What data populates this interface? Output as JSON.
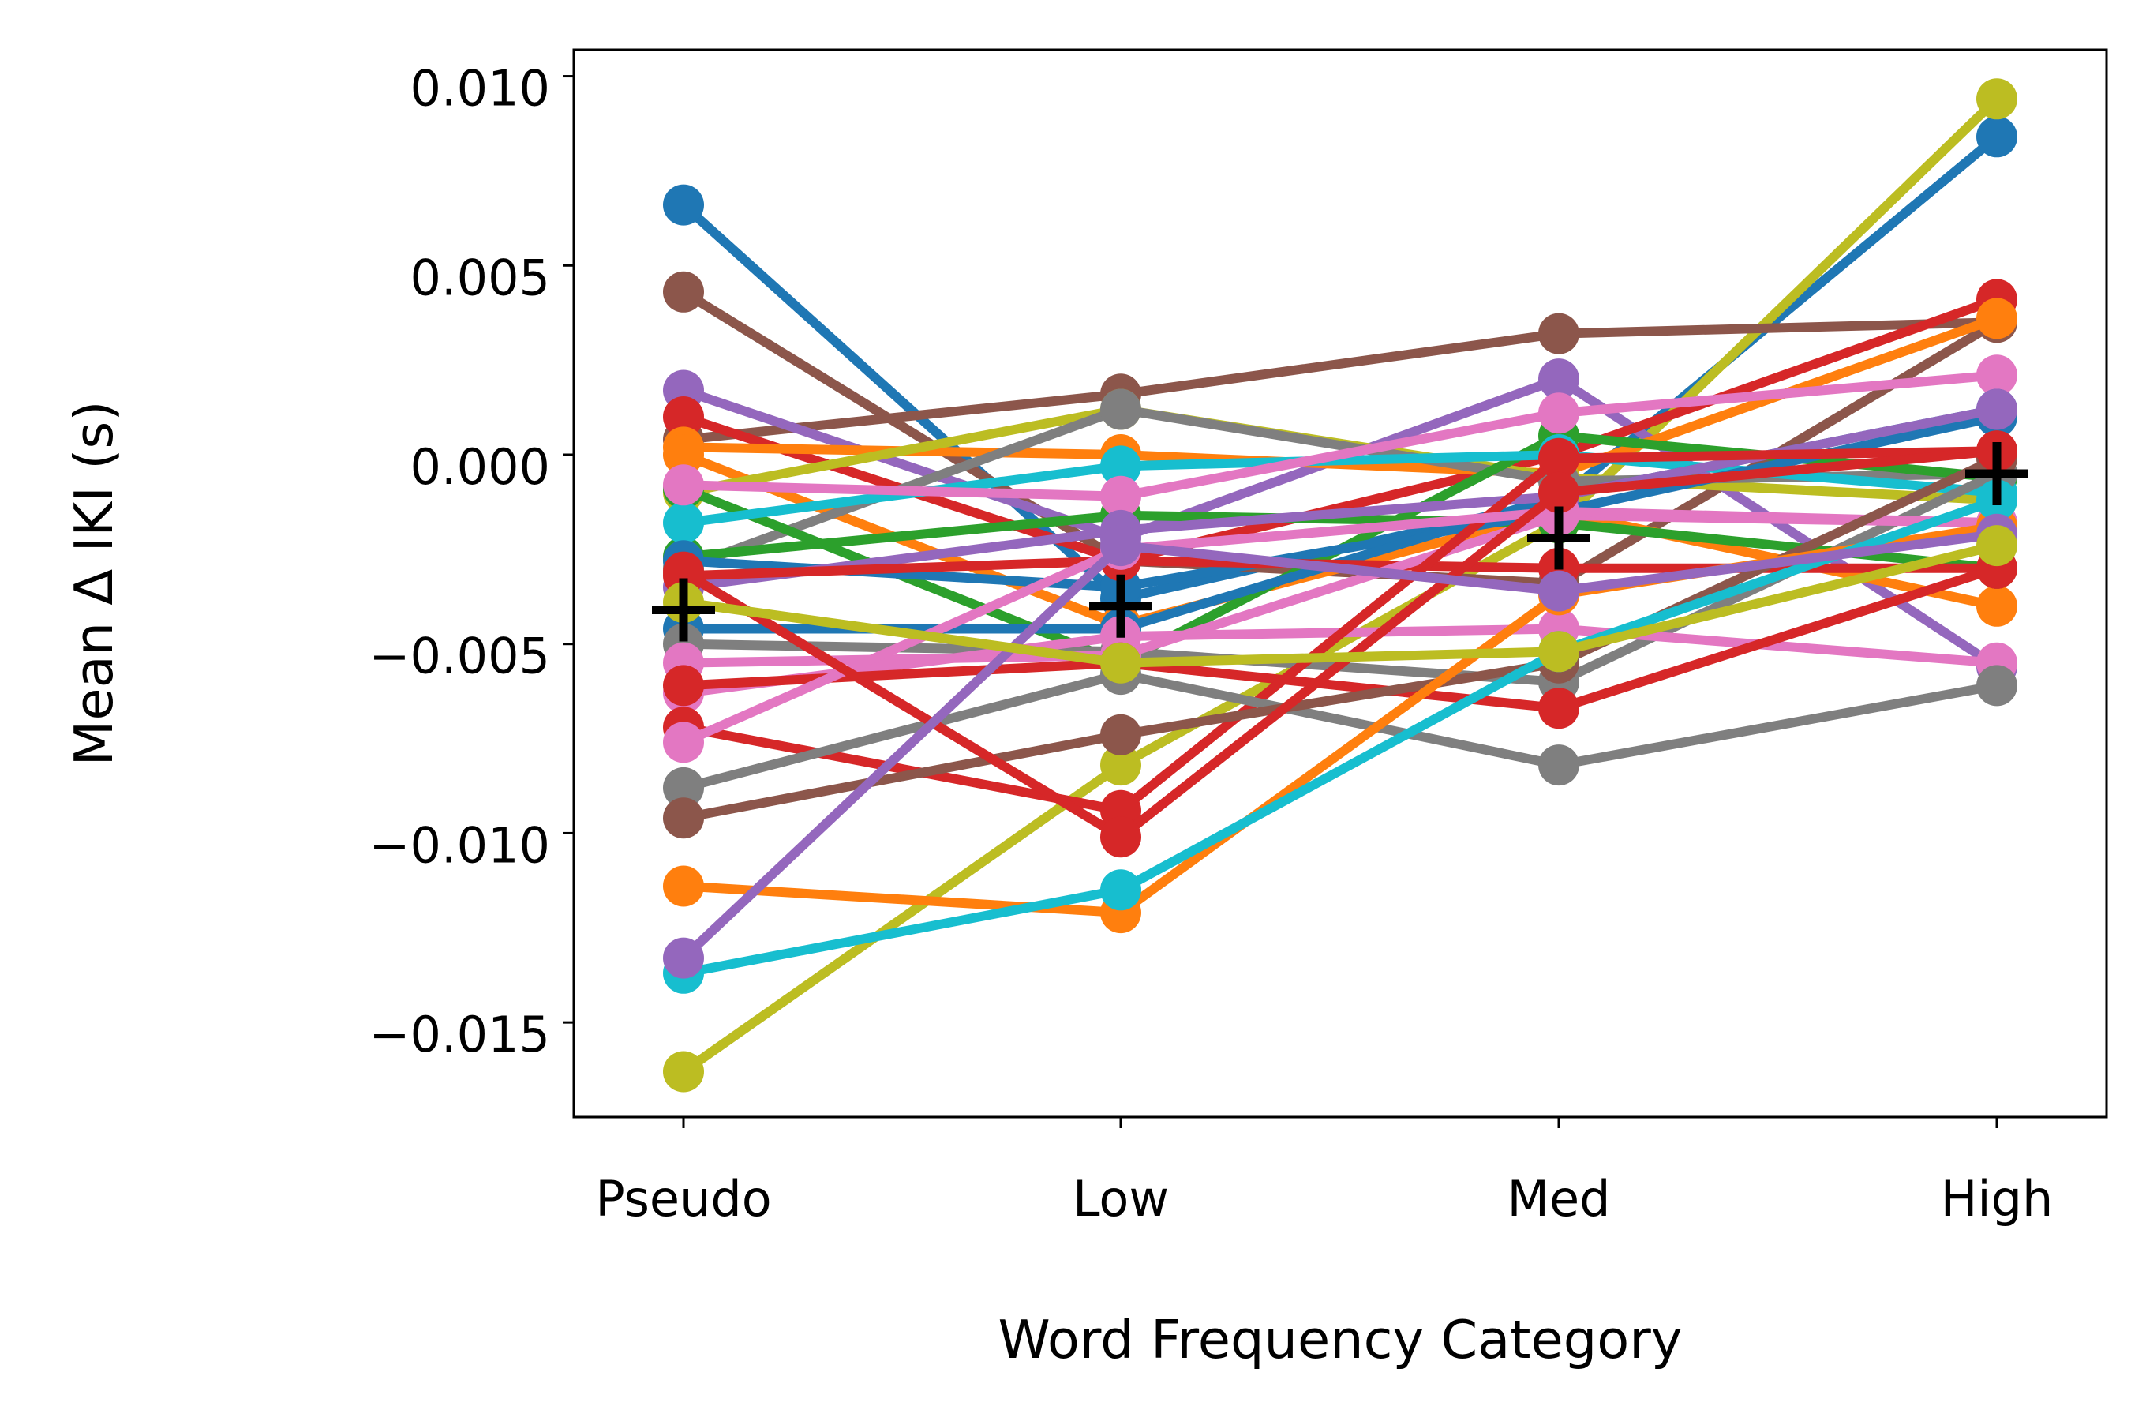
{
  "chart_data": {
    "type": "line",
    "xlabel": "Word Frequency Category",
    "ylabel": "Mean Δ IKI (s)",
    "categories": [
      "Pseudo",
      "Low",
      "Med",
      "High"
    ],
    "ylim": [
      -0.0175,
      0.0107
    ],
    "yticks": [
      0.01,
      0.005,
      0.0,
      -0.005,
      -0.01,
      -0.015
    ],
    "ytick_labels": [
      "0.010",
      "0.005",
      "0.000",
      "−0.005",
      "−0.010",
      "−0.015"
    ],
    "grid": false,
    "legend": "none",
    "colors": [
      "#1f77b4",
      "#ff7f0e",
      "#2ca02c",
      "#d62728",
      "#9467bd",
      "#8c564b",
      "#e377c2",
      "#7f7f7f",
      "#bcbd22",
      "#17becf"
    ],
    "series": [
      {
        "color": "#1f77b4",
        "values": [
          0.0066,
          -0.0038,
          -0.0012,
          0.0084
        ]
      },
      {
        "color": "#bcbd22",
        "values": [
          -0.0163,
          -0.0082,
          -0.0018,
          0.0094
        ]
      },
      {
        "color": "#8c564b",
        "values": [
          0.0043,
          -0.0028,
          -0.0034,
          0.0035
        ]
      },
      {
        "color": "#8c564b",
        "values": [
          0.0004,
          0.0016,
          0.0032,
          0.0035
        ]
      },
      {
        "color": "#9467bd",
        "values": [
          0.0017,
          -0.0022,
          0.002,
          -0.0056
        ]
      },
      {
        "color": "#d62728",
        "values": [
          0.001,
          -0.0028,
          0.0,
          0.0041
        ]
      },
      {
        "color": "#ff7f0e",
        "values": [
          0.0002,
          0.0,
          -0.0005,
          0.0036
        ]
      },
      {
        "color": "#ff7f0e",
        "values": [
          0.0,
          -0.0045,
          -0.0015,
          -0.004
        ]
      },
      {
        "color": "#bcbd22",
        "values": [
          -0.001,
          0.0012,
          -0.0006,
          -0.0012
        ]
      },
      {
        "color": "#7f7f7f",
        "values": [
          -0.003,
          0.0012,
          -0.0007,
          -0.0005
        ]
      },
      {
        "color": "#2ca02c",
        "values": [
          -0.0009,
          -0.0055,
          0.0005,
          -0.0006
        ]
      },
      {
        "color": "#2ca02c",
        "values": [
          -0.0027,
          -0.0016,
          -0.0018,
          -0.003
        ]
      },
      {
        "color": "#17becf",
        "values": [
          -0.0018,
          -0.0003,
          0.0,
          -0.001
        ]
      },
      {
        "color": "#e377c2",
        "values": [
          -0.0008,
          -0.0011,
          0.0011,
          0.0021
        ]
      },
      {
        "color": "#1f77b4",
        "values": [
          -0.0028,
          -0.0035,
          -0.0015,
          0.001
        ]
      },
      {
        "color": "#1f77b4",
        "values": [
          -0.0046,
          -0.0046,
          -0.0011,
          0.0012
        ]
      },
      {
        "color": "#9467bd",
        "values": [
          -0.0035,
          -0.002,
          -0.0011,
          0.0012
        ]
      },
      {
        "color": "#7f7f7f",
        "values": [
          -0.005,
          -0.0052,
          -0.006,
          -0.0005
        ]
      },
      {
        "color": "#d62728",
        "values": [
          -0.0032,
          -0.0028,
          -0.003,
          -0.003
        ]
      },
      {
        "color": "#e377c2",
        "values": [
          -0.0055,
          -0.0053,
          -0.0016,
          -0.0018
        ]
      },
      {
        "color": "#e377c2",
        "values": [
          -0.0063,
          -0.0048,
          -0.0046,
          -0.0055
        ]
      },
      {
        "color": "#d62728",
        "values": [
          -0.0061,
          -0.0055,
          -0.0067,
          -0.003
        ]
      },
      {
        "color": "#d62728",
        "values": [
          -0.0072,
          -0.0094,
          -0.0001,
          0.0001
        ]
      },
      {
        "color": "#e377c2",
        "values": [
          -0.0076,
          -0.0025,
          -0.0015,
          -0.0018
        ]
      },
      {
        "color": "#7f7f7f",
        "values": [
          -0.0088,
          -0.0058,
          -0.0082,
          -0.0061
        ]
      },
      {
        "color": "#8c564b",
        "values": [
          -0.0096,
          -0.0074,
          -0.0055,
          -0.0001
        ]
      },
      {
        "color": "#d62728",
        "values": [
          -0.0031,
          -0.0101,
          -0.001,
          0.0001
        ]
      },
      {
        "color": "#ff7f0e",
        "values": [
          -0.0114,
          -0.0121,
          -0.0037,
          -0.0019
        ]
      },
      {
        "color": "#17becf",
        "values": [
          -0.0137,
          -0.0115,
          -0.0052,
          -0.0012
        ]
      },
      {
        "color": "#9467bd",
        "values": [
          -0.0133,
          -0.0024,
          -0.0036,
          -0.0021
        ]
      },
      {
        "color": "#bcbd22",
        "values": [
          -0.0039,
          -0.0055,
          -0.0052,
          -0.0024
        ]
      }
    ],
    "mean": {
      "marker": "plus",
      "color": "#000000",
      "values": [
        -0.0041,
        -0.004,
        -0.0022,
        -0.0005
      ]
    }
  }
}
